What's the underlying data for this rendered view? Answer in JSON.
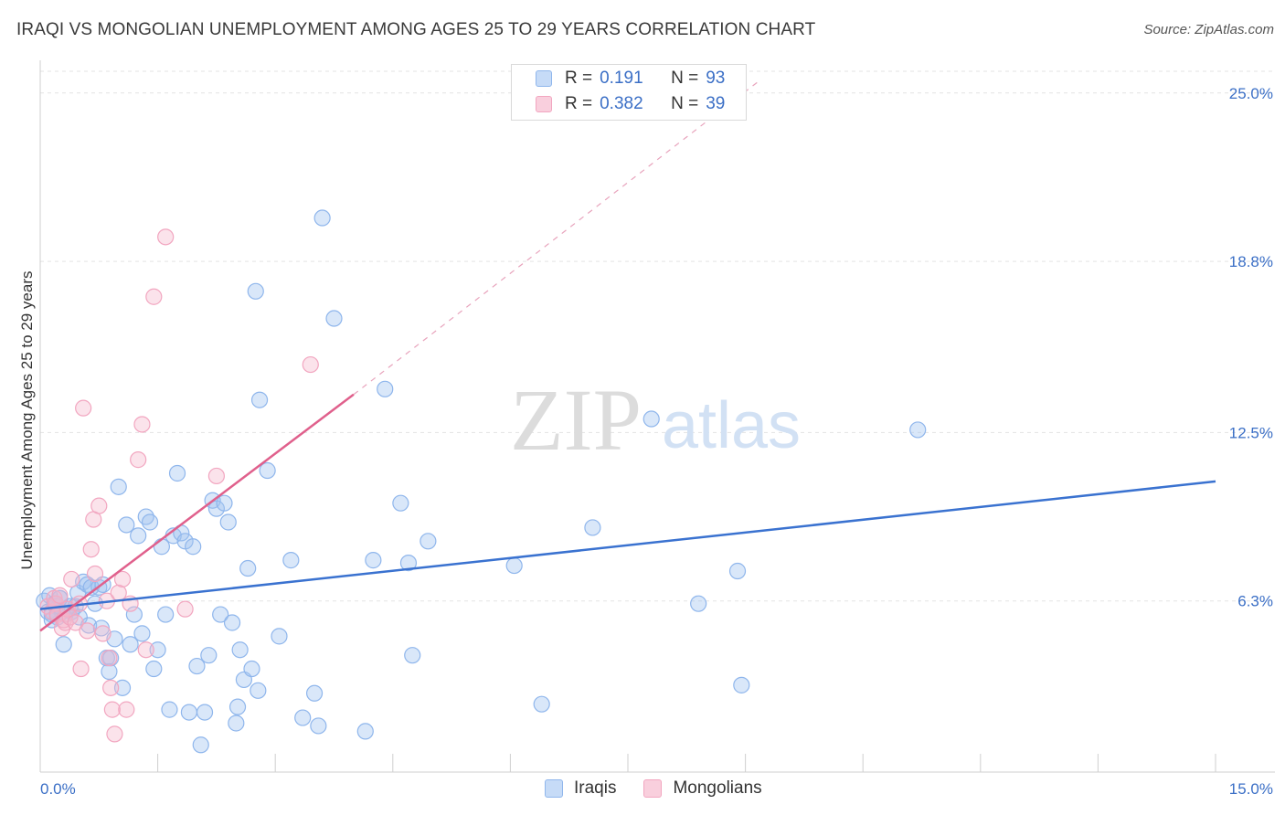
{
  "title": "IRAQI VS MONGOLIAN UNEMPLOYMENT AMONG AGES 25 TO 29 YEARS CORRELATION CHART",
  "source": "Source: ZipAtlas.com",
  "watermark": {
    "zip": "ZIP",
    "atlas": "atlas"
  },
  "legend": {
    "series": [
      {
        "r_label": "R =",
        "r_value": "0.191",
        "n_label": "N =",
        "n_value": "93",
        "color": "#8fb6ec",
        "fill": "#c6dbf7"
      },
      {
        "r_label": "R =",
        "r_value": "0.382",
        "n_label": "N =",
        "n_value": "39",
        "color": "#f2a6c0",
        "fill": "#f9cfdd"
      }
    ]
  },
  "bottom_legend": [
    {
      "label": "Iraqis",
      "color": "#8fb6ec",
      "fill": "#c6dbf7"
    },
    {
      "label": "Mongolians",
      "color": "#f2a6c0",
      "fill": "#f9cfdd"
    }
  ],
  "chart_data": {
    "type": "scatter",
    "title": "IRAQI VS MONGOLIAN UNEMPLOYMENT AMONG AGES 25 TO 29 YEARS CORRELATION CHART",
    "xlabel": "",
    "ylabel": "Unemployment Among Ages 25 to 29 years",
    "xlim": [
      0,
      15
    ],
    "ylim": [
      0,
      25.8
    ],
    "x_tick_labels": [
      "0.0%",
      "15.0%"
    ],
    "y_ticks": [
      6.3,
      12.5,
      18.8,
      25.0
    ],
    "y_tick_labels": [
      "6.3%",
      "12.5%",
      "18.8%",
      "25.0%"
    ],
    "grid": true,
    "legend_position": "top-center",
    "series": [
      {
        "name": "Iraqis",
        "color": "#8fb6ec",
        "points": [
          [
            0.05,
            6.3
          ],
          [
            0.1,
            5.9
          ],
          [
            0.12,
            6.5
          ],
          [
            0.15,
            5.8
          ],
          [
            0.18,
            6.2
          ],
          [
            0.2,
            6.1
          ],
          [
            0.22,
            5.7
          ],
          [
            0.25,
            6.4
          ],
          [
            0.28,
            5.9
          ],
          [
            0.3,
            4.7
          ],
          [
            0.32,
            5.8
          ],
          [
            0.35,
            6.0
          ],
          [
            0.38,
            6.1
          ],
          [
            0.4,
            5.9
          ],
          [
            0.45,
            6.1
          ],
          [
            0.48,
            6.6
          ],
          [
            0.5,
            5.7
          ],
          [
            0.55,
            7.0
          ],
          [
            0.6,
            6.9
          ],
          [
            0.62,
            5.4
          ],
          [
            0.65,
            6.8
          ],
          [
            0.7,
            6.2
          ],
          [
            0.75,
            6.8
          ],
          [
            0.78,
            5.3
          ],
          [
            0.8,
            6.9
          ],
          [
            0.85,
            4.2
          ],
          [
            0.88,
            3.7
          ],
          [
            0.9,
            4.2
          ],
          [
            0.95,
            4.9
          ],
          [
            1.0,
            10.5
          ],
          [
            1.05,
            3.1
          ],
          [
            1.1,
            9.1
          ],
          [
            1.15,
            4.7
          ],
          [
            1.2,
            5.8
          ],
          [
            1.25,
            8.7
          ],
          [
            1.3,
            5.1
          ],
          [
            1.35,
            9.4
          ],
          [
            1.4,
            9.2
          ],
          [
            1.45,
            3.8
          ],
          [
            1.5,
            4.5
          ],
          [
            1.55,
            8.3
          ],
          [
            1.6,
            5.8
          ],
          [
            1.65,
            2.3
          ],
          [
            1.7,
            8.7
          ],
          [
            1.75,
            11.0
          ],
          [
            1.8,
            8.8
          ],
          [
            1.85,
            8.5
          ],
          [
            1.9,
            2.2
          ],
          [
            1.95,
            8.3
          ],
          [
            2.0,
            3.9
          ],
          [
            2.05,
            1.0
          ],
          [
            2.1,
            2.2
          ],
          [
            2.15,
            4.3
          ],
          [
            2.2,
            10.0
          ],
          [
            2.25,
            9.7
          ],
          [
            2.3,
            5.8
          ],
          [
            2.35,
            9.9
          ],
          [
            2.4,
            9.2
          ],
          [
            2.45,
            5.5
          ],
          [
            2.5,
            1.8
          ],
          [
            2.52,
            2.4
          ],
          [
            2.55,
            4.5
          ],
          [
            2.6,
            3.4
          ],
          [
            2.65,
            7.5
          ],
          [
            2.7,
            3.8
          ],
          [
            2.75,
            17.7
          ],
          [
            2.78,
            3.0
          ],
          [
            2.8,
            13.7
          ],
          [
            2.9,
            11.1
          ],
          [
            3.05,
            5.0
          ],
          [
            3.2,
            7.8
          ],
          [
            3.35,
            2.0
          ],
          [
            3.5,
            2.9
          ],
          [
            3.55,
            1.7
          ],
          [
            3.6,
            20.4
          ],
          [
            3.75,
            16.7
          ],
          [
            4.15,
            1.5
          ],
          [
            4.25,
            7.8
          ],
          [
            4.4,
            14.1
          ],
          [
            4.6,
            9.9
          ],
          [
            4.7,
            7.7
          ],
          [
            4.75,
            4.3
          ],
          [
            4.95,
            8.5
          ],
          [
            6.05,
            7.6
          ],
          [
            6.4,
            2.5
          ],
          [
            7.05,
            9.0
          ],
          [
            7.8,
            13.0
          ],
          [
            8.4,
            6.2
          ],
          [
            8.9,
            7.4
          ],
          [
            8.95,
            3.2
          ],
          [
            11.2,
            12.6
          ],
          [
            0.15,
            5.6
          ],
          [
            0.25,
            6.4
          ]
        ]
      },
      {
        "name": "Mongolians",
        "color": "#f2a6c0",
        "points": [
          [
            0.1,
            6.1
          ],
          [
            0.15,
            5.9
          ],
          [
            0.18,
            6.4
          ],
          [
            0.2,
            6.2
          ],
          [
            0.22,
            5.8
          ],
          [
            0.25,
            6.5
          ],
          [
            0.28,
            5.3
          ],
          [
            0.3,
            5.6
          ],
          [
            0.32,
            5.5
          ],
          [
            0.35,
            6.0
          ],
          [
            0.38,
            5.7
          ],
          [
            0.4,
            7.1
          ],
          [
            0.45,
            5.5
          ],
          [
            0.5,
            6.2
          ],
          [
            0.52,
            3.8
          ],
          [
            0.55,
            13.4
          ],
          [
            0.6,
            5.2
          ],
          [
            0.65,
            8.2
          ],
          [
            0.68,
            9.3
          ],
          [
            0.7,
            7.3
          ],
          [
            0.75,
            9.8
          ],
          [
            0.8,
            5.1
          ],
          [
            0.85,
            6.3
          ],
          [
            0.88,
            4.2
          ],
          [
            0.9,
            3.1
          ],
          [
            0.92,
            2.3
          ],
          [
            0.95,
            1.4
          ],
          [
            1.0,
            6.6
          ],
          [
            1.05,
            7.1
          ],
          [
            1.1,
            2.3
          ],
          [
            1.15,
            6.2
          ],
          [
            1.25,
            11.5
          ],
          [
            1.3,
            12.8
          ],
          [
            1.35,
            4.5
          ],
          [
            1.45,
            17.5
          ],
          [
            1.6,
            19.7
          ],
          [
            1.85,
            6.0
          ],
          [
            2.25,
            10.9
          ],
          [
            3.45,
            15.0
          ]
        ]
      }
    ],
    "trend_lines": [
      {
        "series": "Iraqis",
        "x": [
          0.0,
          15.0
        ],
        "y": [
          6.0,
          10.7
        ],
        "color": "#3a72d0"
      },
      {
        "series": "Mongolians",
        "x": [
          0.0,
          4.0
        ],
        "y": [
          5.2,
          13.9
        ],
        "color": "#e0608c",
        "extended_to": [
          9.2,
          25.5
        ]
      }
    ]
  }
}
